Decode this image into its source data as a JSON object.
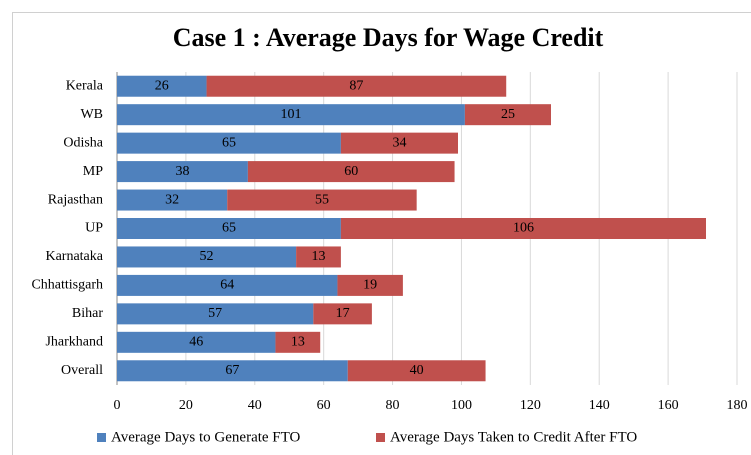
{
  "chart_data": {
    "type": "stacked-bar-horizontal",
    "title": "Case 1 : Average Days for Wage Credit",
    "categories": [
      "Kerala",
      "WB",
      "Odisha",
      "MP",
      "Rajasthan",
      "UP",
      "Karnataka",
      "Chhattisgarh",
      "Bihar",
      "Jharkhand",
      "Overall"
    ],
    "series": [
      {
        "name": "Average Days to Generate FTO",
        "color": "#4f81bd",
        "values": [
          26,
          101,
          65,
          38,
          32,
          65,
          52,
          64,
          57,
          46,
          67
        ]
      },
      {
        "name": "Average Days Taken to Credit After FTO",
        "color": "#c0504d",
        "values": [
          87,
          25,
          34,
          60,
          55,
          106,
          13,
          19,
          17,
          13,
          40
        ]
      }
    ],
    "xlim": [
      0,
      180
    ],
    "xticks": [
      0,
      20,
      40,
      60,
      80,
      100,
      120,
      140,
      160,
      180
    ],
    "grid": true,
    "legend": "bottom"
  }
}
